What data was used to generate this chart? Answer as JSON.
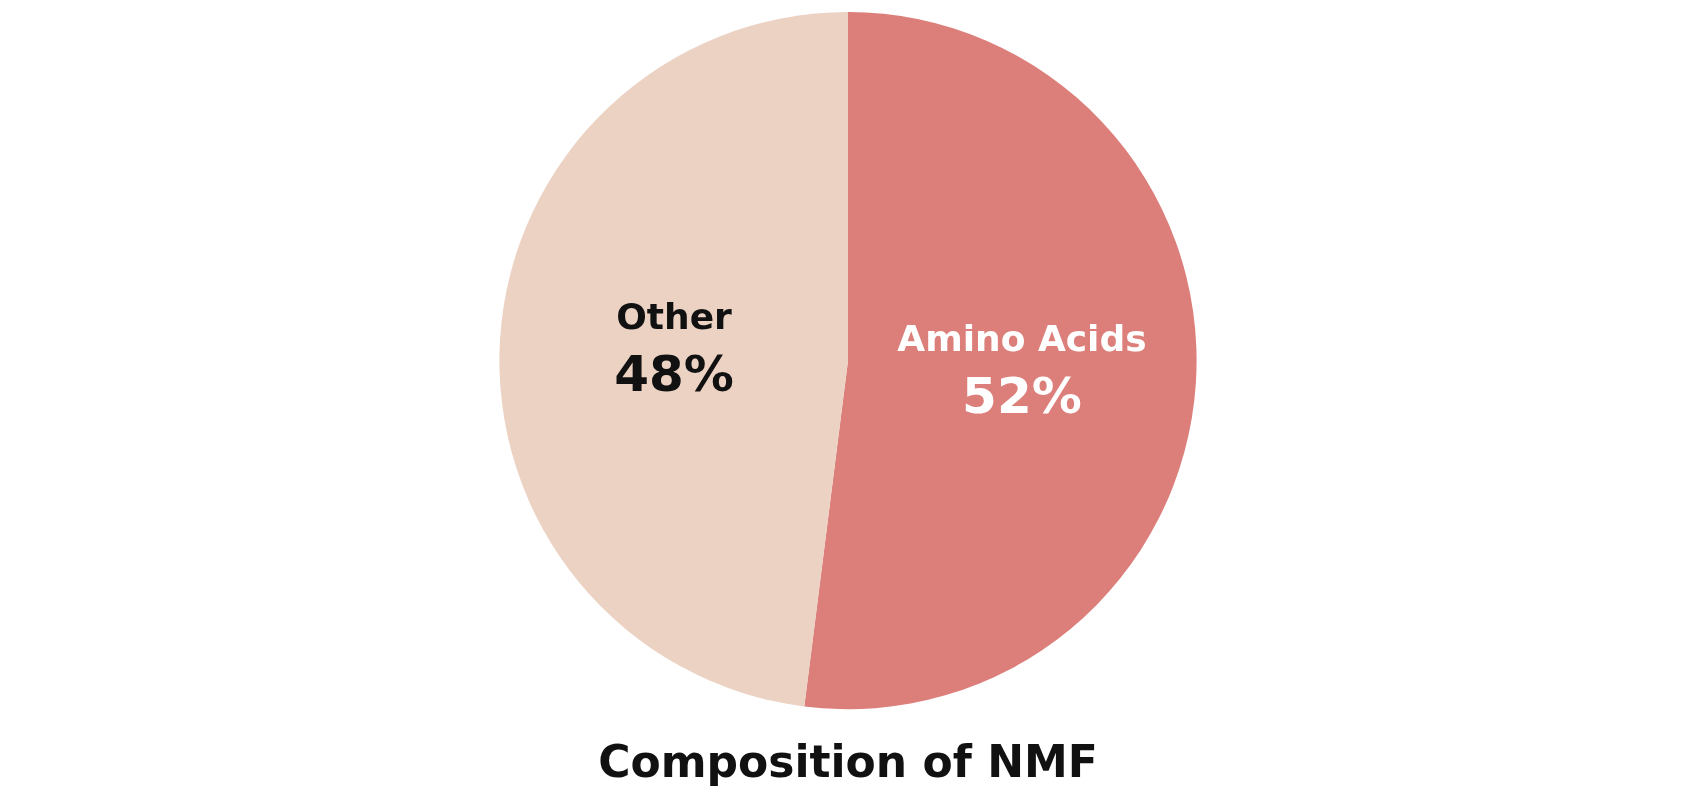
{
  "chart_data": {
    "type": "pie",
    "title": "Composition of NMF",
    "categories": [
      "Amino Acids",
      "Other"
    ],
    "values": [
      52,
      48
    ],
    "colors": [
      "#dc7f7a",
      "#ecd2c3"
    ],
    "value_labels": [
      "52%",
      "48%"
    ]
  }
}
